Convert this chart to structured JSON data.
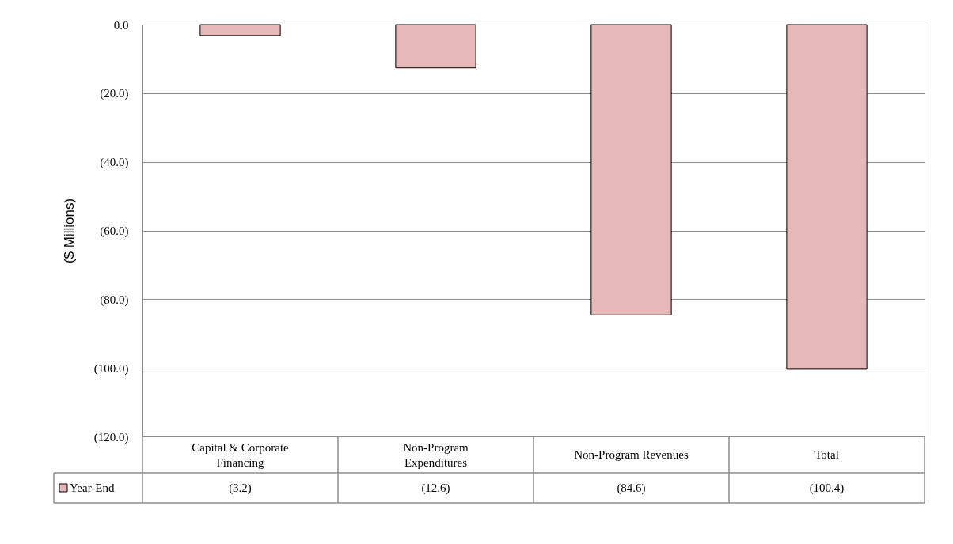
{
  "chart_data": {
    "type": "bar",
    "ylabel": "($ Millions)",
    "categories": [
      "Capital & Corporate Financing",
      "Non-Program Expenditures",
      "Non-Program Revenues",
      "Total"
    ],
    "series": [
      {
        "name": "Year-End",
        "color": "#e6b8b7",
        "values": [
          -3.2,
          -12.6,
          -84.6,
          -100.4
        ],
        "value_labels": [
          "(3.2)",
          "(12.6)",
          "(84.6)",
          "(100.4)"
        ]
      }
    ],
    "ylim": [
      -120,
      0
    ],
    "yticks": [
      {
        "value": 0,
        "label": "0.0"
      },
      {
        "value": -20,
        "label": "(20.0)"
      },
      {
        "value": -40,
        "label": "(40.0)"
      },
      {
        "value": -60,
        "label": "(60.0)"
      },
      {
        "value": -80,
        "label": "(80.0)"
      },
      {
        "value": -100,
        "label": "(100.0)"
      },
      {
        "value": -120,
        "label": "(120.0)"
      }
    ],
    "grid": "y",
    "legend": "bottom"
  }
}
